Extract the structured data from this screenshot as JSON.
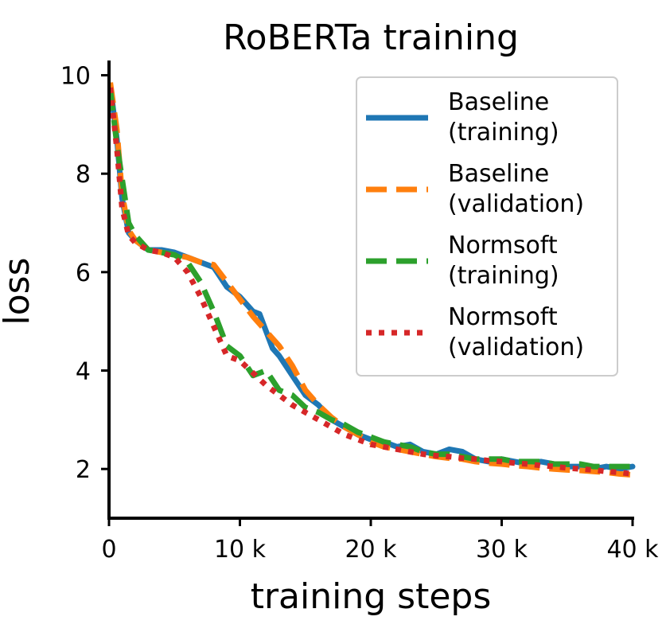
{
  "chart_data": {
    "type": "line",
    "title": "RoBERTa training",
    "xlabel": "training steps",
    "ylabel": "loss",
    "xlim": [
      0,
      40000
    ],
    "ylim": [
      1,
      10.3
    ],
    "grid": false,
    "legend_position": "top-right",
    "xticks": [
      {
        "value": 0,
        "label": "0"
      },
      {
        "value": 10000,
        "label": "10 k"
      },
      {
        "value": 20000,
        "label": "20 k"
      },
      {
        "value": 30000,
        "label": "30 k"
      },
      {
        "value": 40000,
        "label": "40 k"
      }
    ],
    "yticks": [
      {
        "value": 2,
        "label": "2"
      },
      {
        "value": 4,
        "label": "4"
      },
      {
        "value": 6,
        "label": "6"
      },
      {
        "value": 8,
        "label": "8"
      },
      {
        "value": 10,
        "label": "10"
      }
    ],
    "series": [
      {
        "name_line1": "Baseline",
        "name_line2": "(training)",
        "color": "#1f77b4",
        "style": "solid",
        "x": [
          100,
          600,
          1000,
          1500,
          2000,
          3000,
          4000,
          5000,
          6000,
          7000,
          8000,
          9000,
          10000,
          11000,
          11500,
          12000,
          12500,
          13000,
          14000,
          15000,
          16000,
          17000,
          18000,
          19000,
          20000,
          21000,
          22000,
          23000,
          24000,
          25000,
          26000,
          27000,
          28000,
          29000,
          30000,
          31000,
          32000,
          33000,
          34000,
          35000,
          36000,
          37000,
          38000,
          39000,
          40000
        ],
        "y": [
          9.8,
          8.7,
          7.5,
          6.8,
          6.65,
          6.45,
          6.45,
          6.4,
          6.3,
          6.2,
          6.1,
          5.7,
          5.5,
          5.2,
          5.15,
          4.8,
          4.45,
          4.3,
          3.9,
          3.5,
          3.3,
          3.0,
          2.85,
          2.7,
          2.6,
          2.55,
          2.45,
          2.5,
          2.35,
          2.3,
          2.4,
          2.35,
          2.2,
          2.15,
          2.2,
          2.15,
          2.1,
          2.15,
          2.1,
          2.05,
          2.05,
          2.0,
          2.05,
          2.0,
          2.05
        ]
      },
      {
        "name_line1": "Baseline",
        "name_line2": "(validation)",
        "color": "#ff7f0e",
        "style": "dashed",
        "x": [
          100,
          600,
          1000,
          1500,
          2000,
          3000,
          4000,
          5000,
          6000,
          7000,
          8000,
          9000,
          10000,
          11000,
          12000,
          13000,
          14000,
          15000,
          16000,
          17000,
          18000,
          19000,
          20000,
          21000,
          22000,
          23000,
          24000,
          25000,
          26000,
          27000,
          28000,
          29000,
          30000,
          31000,
          32000,
          33000,
          34000,
          35000,
          36000,
          37000,
          38000,
          39000,
          40000
        ],
        "y": [
          9.85,
          8.9,
          7.6,
          6.85,
          6.65,
          6.45,
          6.4,
          6.35,
          6.3,
          6.2,
          6.15,
          5.8,
          5.45,
          5.1,
          4.8,
          4.5,
          4.1,
          3.6,
          3.3,
          3.05,
          2.85,
          2.7,
          2.55,
          2.45,
          2.4,
          2.35,
          2.3,
          2.25,
          2.22,
          2.2,
          2.15,
          2.12,
          2.1,
          2.07,
          2.05,
          2.02,
          2.0,
          1.98,
          1.97,
          1.95,
          1.93,
          1.9,
          1.88
        ]
      },
      {
        "name_line1": "Normsoft",
        "name_line2": "(training)",
        "color": "#2ca02c",
        "style": "dashed",
        "x": [
          100,
          600,
          1000,
          1500,
          2000,
          3000,
          4000,
          5000,
          6000,
          7000,
          8000,
          9000,
          10000,
          11000,
          12000,
          13000,
          14000,
          15000,
          16000,
          17000,
          18000,
          19000,
          20000,
          21000,
          22000,
          23000,
          24000,
          25000,
          26000,
          27000,
          28000,
          29000,
          30000,
          31000,
          32000,
          33000,
          34000,
          35000,
          36000,
          37000,
          38000,
          39000,
          40000
        ],
        "y": [
          9.7,
          8.6,
          7.9,
          7.0,
          6.75,
          6.45,
          6.4,
          6.35,
          6.2,
          5.8,
          5.2,
          4.5,
          4.3,
          3.9,
          4.0,
          3.6,
          3.5,
          3.25,
          3.15,
          3.0,
          2.9,
          2.75,
          2.65,
          2.55,
          2.5,
          2.45,
          2.35,
          2.3,
          2.3,
          2.25,
          2.2,
          2.2,
          2.2,
          2.15,
          2.15,
          2.15,
          2.1,
          2.1,
          2.1,
          2.05,
          2.05,
          2.05,
          2.05
        ]
      },
      {
        "name_line1": "Normsoft",
        "name_line2": "(validation)",
        "color": "#d62728",
        "style": "dotted",
        "x": [
          100,
          600,
          1000,
          1500,
          2000,
          3000,
          4000,
          5000,
          6000,
          7000,
          8000,
          9000,
          10000,
          11000,
          12000,
          13000,
          14000,
          15000,
          16000,
          17000,
          18000,
          19000,
          20000,
          21000,
          22000,
          23000,
          24000,
          25000,
          26000,
          27000,
          28000,
          29000,
          30000,
          31000,
          32000,
          33000,
          34000,
          35000,
          36000,
          37000,
          38000,
          39000,
          40000
        ],
        "y": [
          9.75,
          8.5,
          7.3,
          6.75,
          6.6,
          6.45,
          6.4,
          6.3,
          6.0,
          5.5,
          4.9,
          4.3,
          4.2,
          3.95,
          3.7,
          3.5,
          3.3,
          3.15,
          3.0,
          2.85,
          2.7,
          2.6,
          2.5,
          2.45,
          2.4,
          2.35,
          2.3,
          2.27,
          2.25,
          2.22,
          2.2,
          2.17,
          2.15,
          2.12,
          2.1,
          2.07,
          2.05,
          2.02,
          2.0,
          1.98,
          1.95,
          1.93,
          1.9
        ]
      }
    ]
  }
}
